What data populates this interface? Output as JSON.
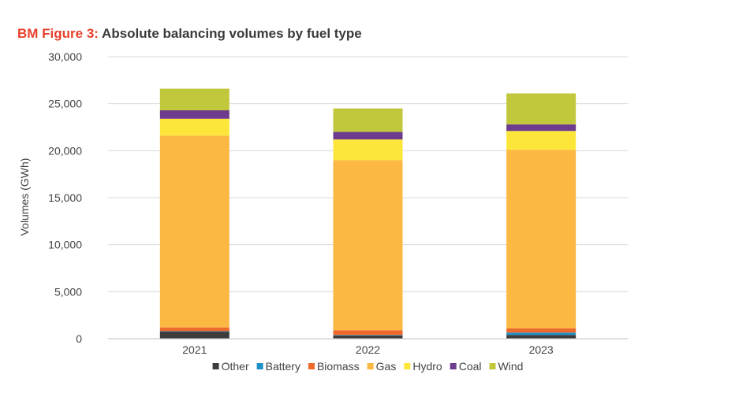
{
  "figure": {
    "prefix": "BM Figure 3:",
    "title": " Absolute balancing volumes by fuel type"
  },
  "chart_data": {
    "type": "bar",
    "stacked": true,
    "categories": [
      "2021",
      "2022",
      "2023"
    ],
    "ylabel": "Volumes (GWh)",
    "xlabel": "",
    "ylim": [
      0,
      30000
    ],
    "yticks": [
      0,
      5000,
      10000,
      15000,
      20000,
      25000,
      30000
    ],
    "ytick_labels": [
      "0",
      "5,000",
      "10,000",
      "15,000",
      "20,000",
      "25,000",
      "30,000"
    ],
    "grid": true,
    "legend_position": "bottom",
    "series": [
      {
        "name": "Other",
        "color": "#3d3d3d",
        "values": [
          750,
          350,
          400
        ]
      },
      {
        "name": "Battery",
        "color": "#1f8fc8",
        "values": [
          50,
          50,
          250
        ]
      },
      {
        "name": "Biomass",
        "color": "#ee6a2c",
        "values": [
          400,
          500,
          450
        ]
      },
      {
        "name": "Gas",
        "color": "#fbb842",
        "values": [
          20400,
          18100,
          19000
        ]
      },
      {
        "name": "Hydro",
        "color": "#fde63a",
        "values": [
          1800,
          2200,
          2000
        ]
      },
      {
        "name": "Coal",
        "color": "#6d3c8e",
        "values": [
          900,
          800,
          700
        ]
      },
      {
        "name": "Wind",
        "color": "#c2c83c",
        "values": [
          2300,
          2500,
          3300
        ]
      }
    ]
  }
}
